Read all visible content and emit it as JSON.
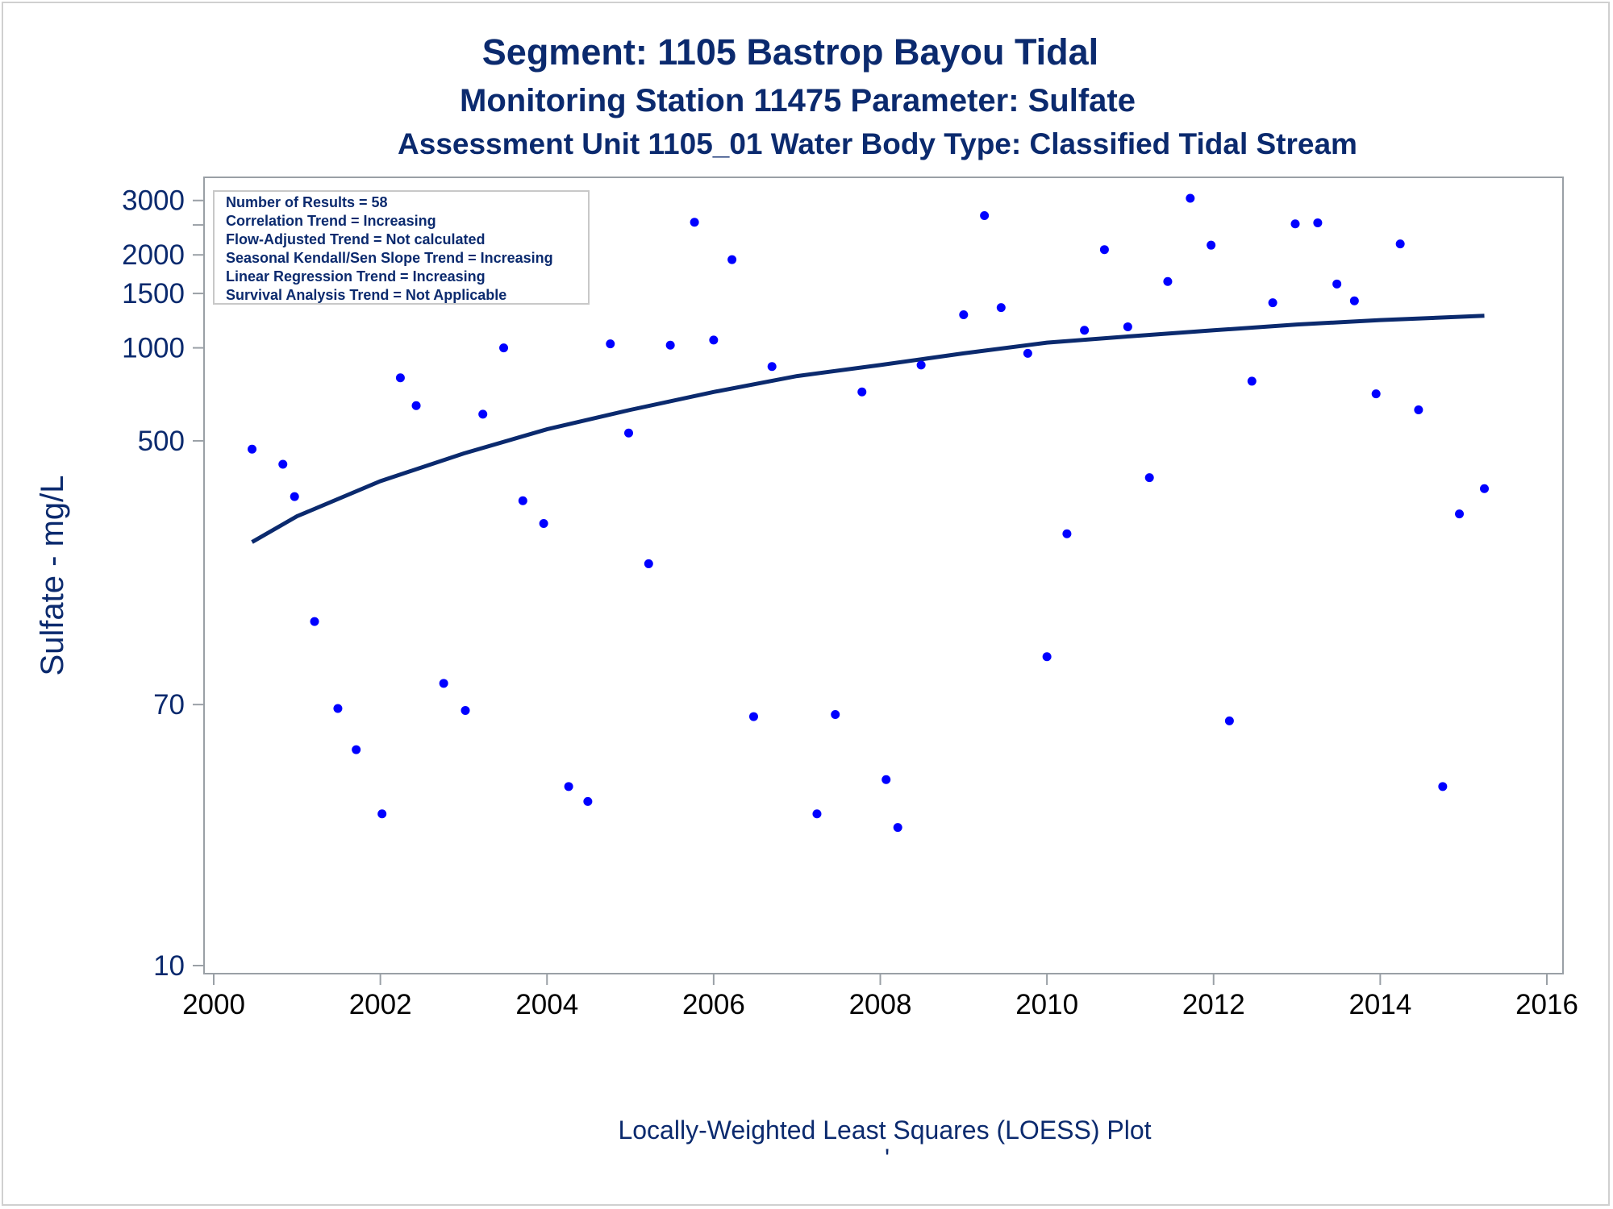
{
  "colors": {
    "text": "#0b2a6e",
    "points": "#0000ff",
    "curve": "#0b2a6e",
    "axis": "#9aa0a6",
    "statsBorder": "#c8c8c8"
  },
  "chart_data": {
    "type": "scatter",
    "title": "Segment: 1105  Bastrop Bayou Tidal",
    "subtitle": "Monitoring Station 11475 Parameter: Sulfate",
    "subtitle2": "Assessment Unit 1105_01   Water Body Type: Classified Tidal Stream",
    "ylabel": "Sulfate - mg/L",
    "xlabel": "",
    "footnote": "Locally-Weighted Least Squares (LOESS) Plot",
    "footnote_mark": "'",
    "yscale": "log",
    "xlim": [
      2000,
      2016
    ],
    "ylim": [
      10,
      3200
    ],
    "xticks": [
      "2000",
      "2002",
      "2004",
      "2006",
      "2008",
      "2010",
      "2012",
      "2014",
      "2016"
    ],
    "yticks": [
      {
        "value": 10,
        "label": "10"
      },
      {
        "value": 70,
        "label": "70"
      },
      {
        "value": 500,
        "label": "500"
      },
      {
        "value": 1000,
        "label": "1000"
      },
      {
        "value": 1500,
        "label": "1500"
      },
      {
        "value": 2000,
        "label": "2000"
      },
      {
        "value": 2500,
        "label": ""
      },
      {
        "value": 3000,
        "label": "3000"
      }
    ],
    "grid": false,
    "legend_position": "top-left",
    "stats_box": [
      "Number of Results = 58",
      "Correlation Trend = Increasing",
      "Flow-Adjusted Trend = Not calculated",
      "Seasonal Kendall/Sen Slope Trend = Increasing",
      "Linear Regression Trend = Increasing",
      "Survival Analysis Trend = Not Applicable"
    ],
    "points": [
      {
        "x": 2000.46,
        "y": 470
      },
      {
        "x": 2000.83,
        "y": 420
      },
      {
        "x": 2000.97,
        "y": 330
      },
      {
        "x": 2001.21,
        "y": 130
      },
      {
        "x": 2001.49,
        "y": 68
      },
      {
        "x": 2001.71,
        "y": 50
      },
      {
        "x": 2002.02,
        "y": 31
      },
      {
        "x": 2002.24,
        "y": 800
      },
      {
        "x": 2002.43,
        "y": 650
      },
      {
        "x": 2002.76,
        "y": 82
      },
      {
        "x": 2003.02,
        "y": 67
      },
      {
        "x": 2003.23,
        "y": 610
      },
      {
        "x": 2003.48,
        "y": 1000
      },
      {
        "x": 2003.71,
        "y": 320
      },
      {
        "x": 2003.96,
        "y": 270
      },
      {
        "x": 2004.26,
        "y": 38
      },
      {
        "x": 2004.49,
        "y": 34
      },
      {
        "x": 2004.76,
        "y": 1030
      },
      {
        "x": 2004.98,
        "y": 530
      },
      {
        "x": 2005.22,
        "y": 200
      },
      {
        "x": 2005.48,
        "y": 1020
      },
      {
        "x": 2005.77,
        "y": 2550
      },
      {
        "x": 2006.0,
        "y": 1060
      },
      {
        "x": 2006.22,
        "y": 1930
      },
      {
        "x": 2006.48,
        "y": 64
      },
      {
        "x": 2006.7,
        "y": 870
      },
      {
        "x": 2007.24,
        "y": 31
      },
      {
        "x": 2007.46,
        "y": 65
      },
      {
        "x": 2007.78,
        "y": 720
      },
      {
        "x": 2008.07,
        "y": 40
      },
      {
        "x": 2008.21,
        "y": 28
      },
      {
        "x": 2008.49,
        "y": 880
      },
      {
        "x": 2009.0,
        "y": 1280
      },
      {
        "x": 2009.25,
        "y": 2680
      },
      {
        "x": 2009.45,
        "y": 1350
      },
      {
        "x": 2009.77,
        "y": 960
      },
      {
        "x": 2010.0,
        "y": 100
      },
      {
        "x": 2010.24,
        "y": 250
      },
      {
        "x": 2010.45,
        "y": 1140
      },
      {
        "x": 2010.69,
        "y": 2080
      },
      {
        "x": 2010.97,
        "y": 1170
      },
      {
        "x": 2011.23,
        "y": 380
      },
      {
        "x": 2011.45,
        "y": 1640
      },
      {
        "x": 2011.72,
        "y": 3050
      },
      {
        "x": 2011.97,
        "y": 2150
      },
      {
        "x": 2012.19,
        "y": 62
      },
      {
        "x": 2012.46,
        "y": 780
      },
      {
        "x": 2012.71,
        "y": 1400
      },
      {
        "x": 2012.98,
        "y": 2520
      },
      {
        "x": 2013.25,
        "y": 2540
      },
      {
        "x": 2013.48,
        "y": 1610
      },
      {
        "x": 2013.69,
        "y": 1420
      },
      {
        "x": 2013.95,
        "y": 710
      },
      {
        "x": 2014.24,
        "y": 2170
      },
      {
        "x": 2014.46,
        "y": 630
      },
      {
        "x": 2014.75,
        "y": 38
      },
      {
        "x": 2014.95,
        "y": 290
      },
      {
        "x": 2015.25,
        "y": 350
      }
    ],
    "loess_curve": [
      {
        "x": 2000.46,
        "y": 235
      },
      {
        "x": 2001.0,
        "y": 285
      },
      {
        "x": 2002.0,
        "y": 370
      },
      {
        "x": 2003.0,
        "y": 455
      },
      {
        "x": 2004.0,
        "y": 545
      },
      {
        "x": 2005.0,
        "y": 630
      },
      {
        "x": 2006.0,
        "y": 720
      },
      {
        "x": 2007.0,
        "y": 810
      },
      {
        "x": 2008.0,
        "y": 880
      },
      {
        "x": 2009.0,
        "y": 960
      },
      {
        "x": 2010.0,
        "y": 1040
      },
      {
        "x": 2011.0,
        "y": 1090
      },
      {
        "x": 2012.0,
        "y": 1140
      },
      {
        "x": 2013.0,
        "y": 1190
      },
      {
        "x": 2014.0,
        "y": 1230
      },
      {
        "x": 2015.25,
        "y": 1270
      }
    ]
  }
}
